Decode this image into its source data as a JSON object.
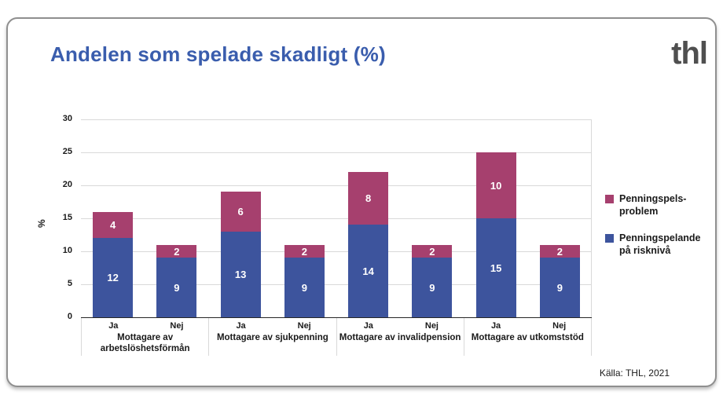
{
  "header": {
    "title": "Andelen som spelade skadligt (%)",
    "title_color": "#3a5dad",
    "logo": "thl"
  },
  "source": {
    "text": "Källa: THL, 2021"
  },
  "chart_data": {
    "type": "bar",
    "stacked": true,
    "title": "Andelen som spelade skadligt (%)",
    "xlabel": "",
    "ylabel": "%",
    "ylim": [
      0,
      30
    ],
    "yticks": [
      0,
      5,
      10,
      15,
      20,
      25,
      30
    ],
    "grid": true,
    "legend_position": "right",
    "groups": [
      "Mottagare av\narbetslöshetsförmån",
      "Mottagare av sjukpenning",
      "Mottagare av invalidpension",
      "Mottagare av utkomststöd"
    ],
    "subcategories": [
      "Ja",
      "Nej"
    ],
    "categories": [
      "Ja",
      "Nej",
      "Ja",
      "Nej",
      "Ja",
      "Nej",
      "Ja",
      "Nej"
    ],
    "series": [
      {
        "name": "Penningspelande på risknivå",
        "legend_label": "Penningspelande\npå risknivå",
        "color": "#3d549d",
        "values": [
          12,
          9,
          13,
          9,
          14,
          9,
          15,
          9
        ]
      },
      {
        "name": "Penningspels-problem",
        "legend_label": "Penningspels-\nproblem",
        "color": "#a6406e",
        "values": [
          4,
          2,
          6,
          2,
          8,
          2,
          10,
          2
        ]
      }
    ]
  }
}
